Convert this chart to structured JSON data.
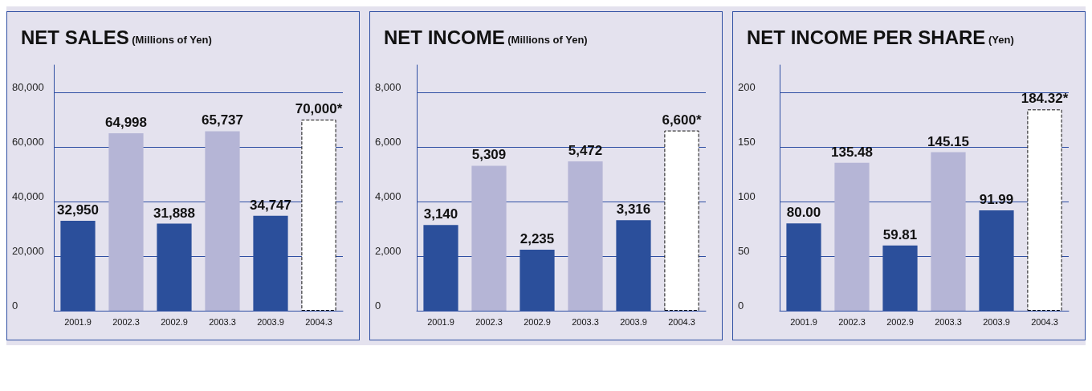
{
  "chart_data": [
    {
      "type": "bar",
      "title": "NET SALES",
      "subtitle": "(Millions of Yen)",
      "categories": [
        "2001.9",
        "2002.3",
        "2002.9",
        "2003.3",
        "2003.9",
        "2004.3"
      ],
      "values": [
        32950,
        64998,
        31888,
        65737,
        34747,
        70000
      ],
      "colors": [
        "#2b4f9b",
        "#b5b5d6",
        "#2b4f9b",
        "#b5b5d6",
        "#2b4f9b",
        "#ffffff"
      ],
      "value_labels": [
        "32,950",
        "64,998",
        "31,888",
        "65,737",
        "34,747",
        "70,000*"
      ],
      "ylim": [
        0,
        90000
      ],
      "yticks": [
        0,
        {
          "value": 20000,
          "label": "20,000"
        },
        {
          "value": 40000,
          "label": "40,000"
        },
        {
          "value": 60000,
          "label": "60,000"
        },
        {
          "value": 80000,
          "label": "80,000"
        }
      ],
      "grid": "y"
    },
    {
      "type": "bar",
      "title": "NET INCOME",
      "subtitle": "(Millions of Yen)",
      "categories": [
        "2001.9",
        "2002.3",
        "2002.9",
        "2003.3",
        "2003.9",
        "2004.3"
      ],
      "values": [
        3140,
        5309,
        2235,
        5472,
        3316,
        6600
      ],
      "colors": [
        "#2b4f9b",
        "#b5b5d6",
        "#2b4f9b",
        "#b5b5d6",
        "#2b4f9b",
        "#ffffff"
      ],
      "value_labels": [
        "3,140",
        "5,309",
        "2,235",
        "5,472",
        "3,316",
        "6,600*"
      ],
      "ylim": [
        0,
        9000
      ],
      "yticks": [
        0,
        {
          "value": 2000,
          "label": "2,000"
        },
        {
          "value": 4000,
          "label": "4,000"
        },
        {
          "value": 6000,
          "label": "6,000"
        },
        {
          "value": 8000,
          "label": "8,000"
        }
      ],
      "grid": "y"
    },
    {
      "type": "bar",
      "title": "NET INCOME PER SHARE",
      "subtitle": "(Yen)",
      "categories": [
        "2001.9",
        "2002.3",
        "2002.9",
        "2003.3",
        "2003.9",
        "2004.3"
      ],
      "values": [
        80.0,
        135.48,
        59.81,
        145.15,
        91.99,
        184.32
      ],
      "colors": [
        "#2b4f9b",
        "#b5b5d6",
        "#2b4f9b",
        "#b5b5d6",
        "#2b4f9b",
        "#ffffff"
      ],
      "value_labels": [
        "80.00",
        "135.48",
        "59.81",
        "145.15",
        "91.99",
        "184.32*"
      ],
      "ylim": [
        0,
        225
      ],
      "yticks": [
        0,
        50,
        100,
        150,
        200
      ],
      "grid": "y"
    }
  ]
}
